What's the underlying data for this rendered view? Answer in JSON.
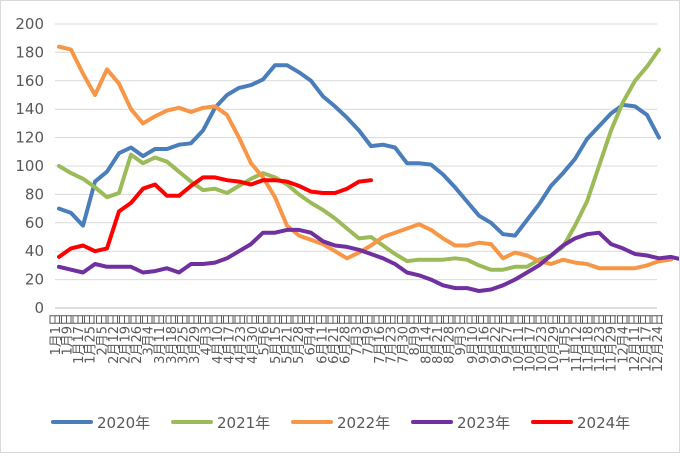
{
  "chart_data": {
    "type": "line",
    "ylim": [
      0,
      200
    ],
    "yticks": [
      0,
      20,
      40,
      60,
      80,
      100,
      120,
      140,
      160,
      180,
      200
    ],
    "grid": "horizontal",
    "legend_position": "bottom",
    "x_tick_labels": [
      "1月1日",
      "1月9日",
      "1月17日",
      "1月25日",
      "2月5日",
      "2月12日",
      "2月19日",
      "2月26日",
      "3月4日",
      "3月11日",
      "3月18日",
      "3月25日",
      "3月29日",
      "4月3日",
      "4月10日",
      "4月17日",
      "4月23日",
      "4月30日",
      "5月6日",
      "5月15日",
      "5月21日",
      "5月28日",
      "6月4日",
      "6月11日",
      "6月21日",
      "6月28日",
      "7月3日",
      "7月9日",
      "7月16日",
      "7月23日",
      "7月30日",
      "8月9日",
      "8月14日",
      "8月21日",
      "8月28日",
      "9月3日",
      "9月10日",
      "9月16日",
      "9月22日",
      "9月27日",
      "10月11日",
      "10月17日",
      "10月23日",
      "10月29日",
      "11月5日",
      "11月12日",
      "11月18日",
      "11月23日",
      "11月29日",
      "12月4日",
      "12月11日",
      "12月17日",
      "12月24日"
    ],
    "series": [
      {
        "name": "2020年",
        "color": "#4a7ebb",
        "values": [
          70,
          67,
          58,
          89,
          96,
          109,
          113,
          107,
          112,
          112,
          115,
          116,
          125,
          141,
          150,
          155,
          157,
          161,
          171,
          171,
          166,
          160,
          149,
          142,
          134,
          125,
          114,
          115,
          113,
          102,
          102,
          101,
          94,
          85,
          75,
          65,
          60,
          52,
          51,
          62,
          73,
          86,
          95,
          105,
          119,
          128,
          137,
          143,
          142,
          136,
          120
        ]
      },
      {
        "name": "2021年",
        "color": "#9bbb59",
        "values": [
          100,
          95,
          91,
          85,
          78,
          81,
          108,
          102,
          106,
          103,
          96,
          89,
          83,
          84,
          81,
          86,
          91,
          95,
          92,
          87,
          80,
          74,
          69,
          63,
          56,
          49,
          50,
          44,
          38,
          33,
          34,
          34,
          34,
          35,
          34,
          30,
          27,
          27,
          29,
          29,
          34,
          37,
          43,
          58,
          75,
          100,
          125,
          145,
          160,
          170,
          182
        ]
      },
      {
        "name": "2022年",
        "color": "#f79646",
        "values": [
          184,
          182,
          165,
          150,
          168,
          158,
          140,
          130,
          135,
          139,
          141,
          138,
          141,
          142,
          136,
          120,
          102,
          92,
          78,
          58,
          51,
          48,
          45,
          40,
          35,
          39,
          44,
          50,
          53,
          56,
          59,
          55,
          49,
          44,
          44,
          46,
          45,
          35,
          39,
          37,
          33,
          31,
          34,
          32,
          31,
          28,
          28,
          28,
          28,
          30,
          33,
          34
        ]
      },
      {
        "name": "2023年",
        "color": "#7030a0",
        "values": [
          29,
          27,
          25,
          31,
          29,
          29,
          29,
          25,
          26,
          28,
          25,
          31,
          31,
          32,
          35,
          40,
          45,
          53,
          53,
          55,
          55,
          53,
          47,
          44,
          43,
          41,
          38,
          35,
          31,
          25,
          23,
          20,
          16,
          14,
          14,
          12,
          13,
          16,
          20,
          25,
          30,
          37,
          44,
          49,
          52,
          53,
          45,
          42,
          38,
          37,
          35,
          36,
          34
        ]
      },
      {
        "name": "2024年",
        "color": "#ff0000",
        "values": [
          36,
          42,
          44,
          40,
          42,
          68,
          74,
          84,
          87,
          79,
          79,
          86,
          92,
          92,
          90,
          89,
          87,
          90,
          90,
          89,
          86,
          82,
          81,
          81,
          84,
          89,
          90
        ]
      }
    ]
  }
}
